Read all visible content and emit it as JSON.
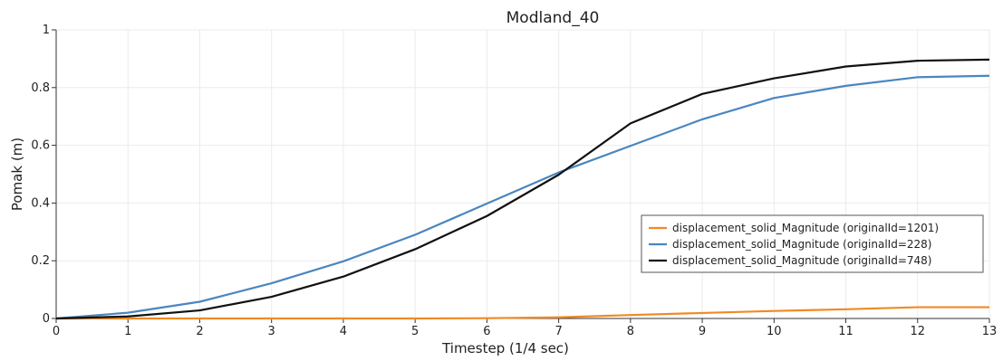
{
  "chart_data": {
    "type": "line",
    "title": "Modland_40",
    "xlabel": "Timestep (1/4 sec)",
    "ylabel": "Pomak (m)",
    "xlim": [
      0,
      13
    ],
    "ylim": [
      0,
      1
    ],
    "x": [
      0,
      1,
      2,
      3,
      4,
      5,
      6,
      7,
      8,
      9,
      10,
      11,
      12,
      13
    ],
    "xticks": [
      "0",
      "1",
      "2",
      "3",
      "4",
      "5",
      "6",
      "7",
      "8",
      "9",
      "10",
      "11",
      "12",
      "13"
    ],
    "yticks": [
      "0",
      "0.2",
      "0.4",
      "0.6",
      "0.8",
      "1"
    ],
    "ytick_values": [
      0,
      0.2,
      0.4,
      0.6,
      0.8,
      1
    ],
    "grid": true,
    "legend_position": "bottom-right",
    "series": [
      {
        "name": "displacement_solid_Magnitude (originalId=1201)",
        "color": "#f08a24",
        "values": [
          0,
          0,
          0,
          0,
          0,
          0,
          0.001,
          0.004,
          0.012,
          0.019,
          0.026,
          0.032,
          0.039,
          0.039
        ]
      },
      {
        "name": "displacement_solid_Magnitude (originalId=228)",
        "color": "#4a86c0",
        "values": [
          0,
          0.02,
          0.058,
          0.122,
          0.198,
          0.29,
          0.398,
          0.506,
          0.598,
          0.69,
          0.764,
          0.806,
          0.836,
          0.841
        ]
      },
      {
        "name": "displacement_solid_Magnitude (originalId=748)",
        "color": "#111111",
        "values": [
          0,
          0.007,
          0.028,
          0.075,
          0.145,
          0.24,
          0.355,
          0.498,
          0.676,
          0.778,
          0.832,
          0.873,
          0.893,
          0.897
        ]
      }
    ]
  }
}
